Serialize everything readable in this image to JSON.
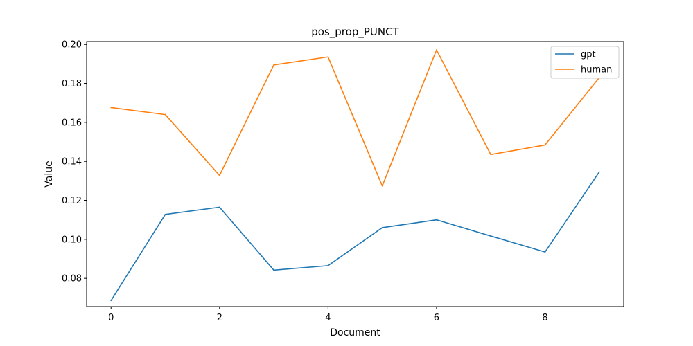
{
  "chart_data": {
    "type": "line",
    "title": "pos_prop_PUNCT",
    "xlabel": "Document",
    "ylabel": "Value",
    "x": [
      0,
      1,
      2,
      3,
      4,
      5,
      6,
      7,
      8,
      9
    ],
    "xlim": [
      -0.45,
      9.45
    ],
    "ylim": [
      0.0655,
      0.2015
    ],
    "xticks": [
      0,
      2,
      4,
      6,
      8
    ],
    "xtick_labels": [
      "0",
      "2",
      "4",
      "6",
      "8"
    ],
    "yticks": [
      0.08,
      0.1,
      0.12,
      0.14,
      0.16,
      0.18,
      0.2
    ],
    "ytick_labels": [
      "0.08",
      "0.10",
      "0.12",
      "0.14",
      "0.16",
      "0.18",
      "0.20"
    ],
    "grid": false,
    "legend_position": "top-right",
    "series": [
      {
        "name": "gpt",
        "color": "#1f77b4",
        "values": [
          0.0686,
          0.1128,
          0.1165,
          0.0842,
          0.0865,
          0.106,
          0.11,
          0.1017,
          0.0935,
          0.1346
        ]
      },
      {
        "name": "human",
        "color": "#ff7f0e",
        "values": [
          0.1676,
          0.164,
          0.1328,
          0.1895,
          0.1936,
          0.1274,
          0.1972,
          0.1435,
          0.1484,
          0.183
        ]
      }
    ]
  }
}
